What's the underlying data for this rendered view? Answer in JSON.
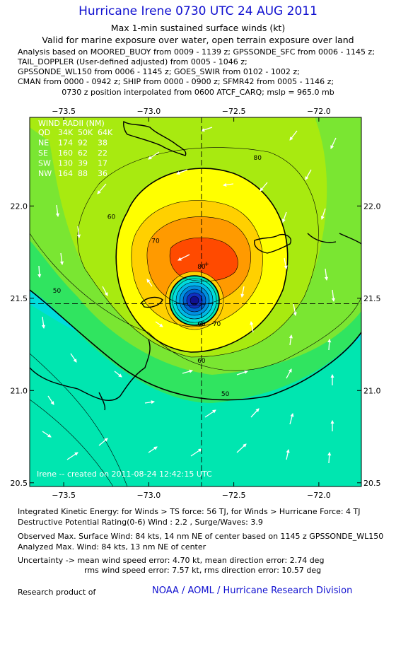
{
  "header": {
    "title": "Hurricane Irene 0730 UTC 24 AUG 2011",
    "subtitle1": "Max 1-min sustained surface winds (kt)",
    "subtitle2": "Valid for marine exposure over water, open terrain exposure over land",
    "analysis_lines": [
      "Analysis based on MOORED_BUOY from 0009 - 1139 z; GPSSONDE_SFC from 0006 - 1145 z;",
      "TAIL_DOPPLER (User-defined adjusted) from 0005 - 1046 z;",
      "GPSSONDE_WL150 from 0006 - 1145 z; GOES_SWIR from 0102 - 1002 z;",
      "CMAN from 0000 - 0942 z; SHIP from 0000 - 0900 z; SFMR42 from 0005 - 1146 z;"
    ],
    "position_note": "0730 z position interpolated from 0600 ATCF_CARQ; mslp = 965.0 mb"
  },
  "chart_data": {
    "type": "heatmap",
    "xlim": [
      -73.7,
      -71.75
    ],
    "ylim": [
      20.48,
      22.48
    ],
    "x_ticks": [
      -73.5,
      -73.0,
      -72.5,
      -72.0
    ],
    "x_tick_labels": [
      "−73.5",
      "−73.0",
      "−72.5",
      "−72.0"
    ],
    "y_ticks": [
      20.5,
      21.0,
      21.5,
      22.0
    ],
    "y_tick_labels": [
      "20.5",
      "21.0",
      "21.5",
      "22.0"
    ],
    "center": {
      "lon": -72.69,
      "lat": 21.47
    },
    "max_wind_marker": {
      "lon": -72.66,
      "lat": 21.69
    },
    "contour_labels": [
      {
        "text": "80",
        "lon": -72.36,
        "lat": 22.25
      },
      {
        "text": "60",
        "lon": -73.22,
        "lat": 21.93
      },
      {
        "text": "70",
        "lon": -72.96,
        "lat": 21.8
      },
      {
        "text": "80",
        "lon": -72.69,
        "lat": 21.66
      },
      {
        "text": "50",
        "lon": -73.54,
        "lat": 21.53
      },
      {
        "text": "70",
        "lon": -72.6,
        "lat": 21.35
      },
      {
        "text": "60",
        "lon": -72.69,
        "lat": 21.35
      },
      {
        "text": "60",
        "lon": -72.69,
        "lat": 21.15
      },
      {
        "text": "50",
        "lon": -72.55,
        "lat": 20.97
      }
    ],
    "wind_radii": {
      "title": "WIND RADII (NM)",
      "header": [
        "QD",
        "34K",
        "50K",
        "64K"
      ],
      "rows": [
        [
          "NE",
          "174",
          "92",
          "38"
        ],
        [
          "SE",
          "160",
          "62",
          "22"
        ],
        [
          "SW",
          "130",
          "39",
          "17"
        ],
        [
          "NW",
          "164",
          "88",
          "36"
        ]
      ]
    },
    "credit": "Irene -- created on 2011-08-24 12:42:15 UTC"
  },
  "info": {
    "ike": "Integrated Kinetic Energy:  for Winds > TS force: 56 TJ,  for Winds > Hurricane Force: 4 TJ",
    "dpr": "Destructive Potential Rating(0-6)   Wind : 2.2 , Surge/Waves: 3.9",
    "observed_max": "Observed Max. Surface Wind: 84 kts, 14 nm NE of center based on 1145 z GPSSONDE_WL150",
    "analyzed_max": "Analyzed Max. Wind: 84 kts, 13 nm NE of center",
    "uncertainty1": "Uncertainty -> mean wind speed error: 4.70 kt,   mean direction error: 2.74 deg",
    "uncertainty2": "rms wind speed error: 7.57 kt,   rms direction error: 10.57 deg",
    "research": "Research product of",
    "org": "NOAA / AOML / Hurricane Research Division"
  }
}
